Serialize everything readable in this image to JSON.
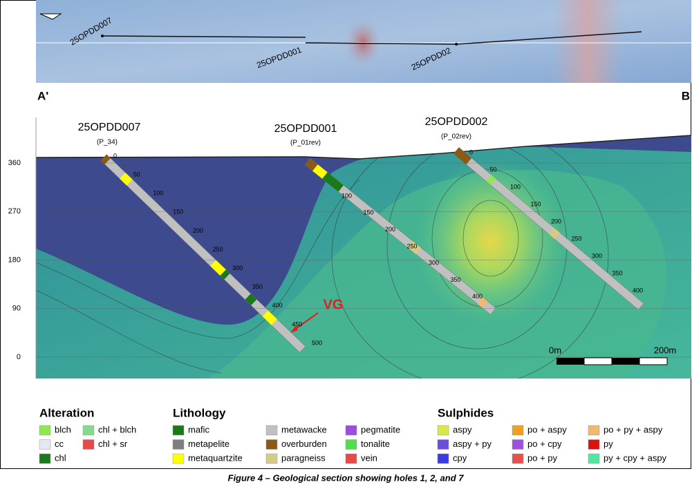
{
  "map": {
    "holes": [
      "25OPDD007",
      "25OPDD001",
      "25OPDD02"
    ]
  },
  "section": {
    "ends": [
      "A'",
      "B"
    ],
    "yticks": [
      0,
      90,
      180,
      270,
      360
    ],
    "holes": [
      {
        "name": "25OPDD007",
        "sub": "(P_34)",
        "depths": [
          0,
          50,
          100,
          150,
          200,
          250,
          300,
          350,
          400,
          450,
          500
        ]
      },
      {
        "name": "25OPDD001",
        "sub": "(P_01rev)",
        "depths": [
          100,
          150,
          200,
          250,
          300,
          350,
          400
        ]
      },
      {
        "name": "25OPDD002",
        "sub": "(P_02rev)",
        "depths": [
          0,
          50,
          100,
          150,
          200,
          250,
          300,
          350,
          400
        ]
      }
    ],
    "annotation": "VG",
    "scale": [
      "0m",
      "200m"
    ]
  },
  "legend": [
    {
      "title": "Alteration",
      "columns": [
        [
          {
            "label": "blch",
            "color": "#8fe84f"
          },
          {
            "label": "cc",
            "color": "#e6e6f4"
          },
          {
            "label": "chl",
            "color": "#1e7a1e"
          }
        ],
        [
          {
            "label": "chl + blch",
            "color": "#86d98f"
          },
          {
            "label": "chl + sr",
            "color": "#e84a4a"
          }
        ]
      ]
    },
    {
      "title": "Lithology",
      "columns": [
        [
          {
            "label": "mafic",
            "color": "#1a7a1a"
          },
          {
            "label": "metapelite",
            "color": "#7f7f7f"
          },
          {
            "label": "metaquartzite",
            "color": "#ffff00"
          }
        ],
        [
          {
            "label": "metawacke",
            "color": "#c0c0c0"
          },
          {
            "label": "overburden",
            "color": "#8b5a14"
          },
          {
            "label": "paragneiss",
            "color": "#d4cc84"
          }
        ],
        [
          {
            "label": "pegmatite",
            "color": "#9b4de0"
          },
          {
            "label": "tonalite",
            "color": "#4ce04c"
          },
          {
            "label": "vein",
            "color": "#e84a4a"
          }
        ]
      ]
    },
    {
      "title": "Sulphides",
      "columns": [
        [
          {
            "label": "aspy",
            "color": "#d8e84a"
          },
          {
            "label": "aspy + py",
            "color": "#6a4ce0"
          },
          {
            "label": "cpy",
            "color": "#3a3ae8"
          }
        ],
        [
          {
            "label": "po + aspy",
            "color": "#f0a020"
          },
          {
            "label": "po + cpy",
            "color": "#a050e0"
          },
          {
            "label": "po + py",
            "color": "#e85050"
          }
        ],
        [
          {
            "label": "po + py + aspy",
            "color": "#f0b870"
          },
          {
            "label": "py",
            "color": "#e01010"
          },
          {
            "label": "py + cpy + aspy",
            "color": "#50e8a0"
          }
        ]
      ]
    }
  ],
  "caption": "Figure 4 – Geological section showing holes 1, 2, and 7"
}
